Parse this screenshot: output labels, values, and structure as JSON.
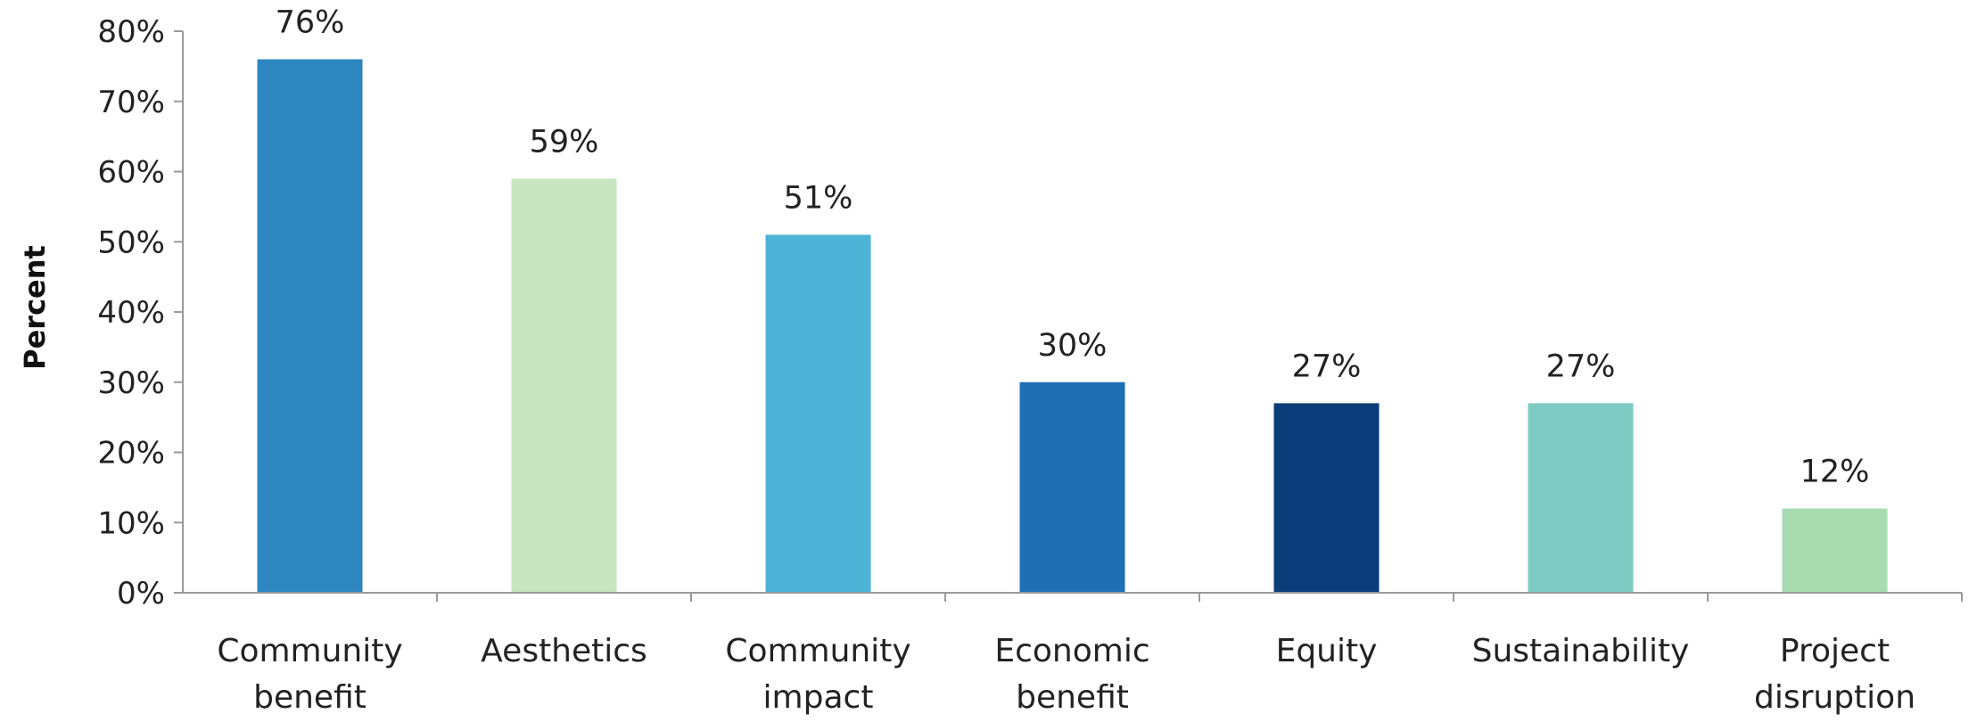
{
  "chart_data": {
    "type": "bar",
    "title": "",
    "xlabel": "",
    "ylabel": "Percent",
    "ylim": [
      0,
      80
    ],
    "yticks": [
      "0%",
      "10%",
      "20%",
      "30%",
      "40%",
      "50%",
      "60%",
      "70%",
      "80%"
    ],
    "grid": false,
    "legend": "none",
    "categories": [
      [
        "Community",
        "benefit"
      ],
      [
        "Aesthetics"
      ],
      [
        "Community",
        "impact"
      ],
      [
        "Economic",
        "benefit"
      ],
      [
        "Equity"
      ],
      [
        "Sustainability"
      ],
      [
        "Project",
        "disruption"
      ]
    ],
    "values": [
      76,
      59,
      51,
      30,
      27,
      27,
      12
    ],
    "data_labels": [
      "76%",
      "59%",
      "51%",
      "30%",
      "27%",
      "27%",
      "12%"
    ],
    "colors": [
      "#2e86c1",
      "#c8e6c0",
      "#4db3d6",
      "#1f6fb5",
      "#0c3d7a",
      "#7ecbc4",
      "#a8dcb0"
    ]
  }
}
